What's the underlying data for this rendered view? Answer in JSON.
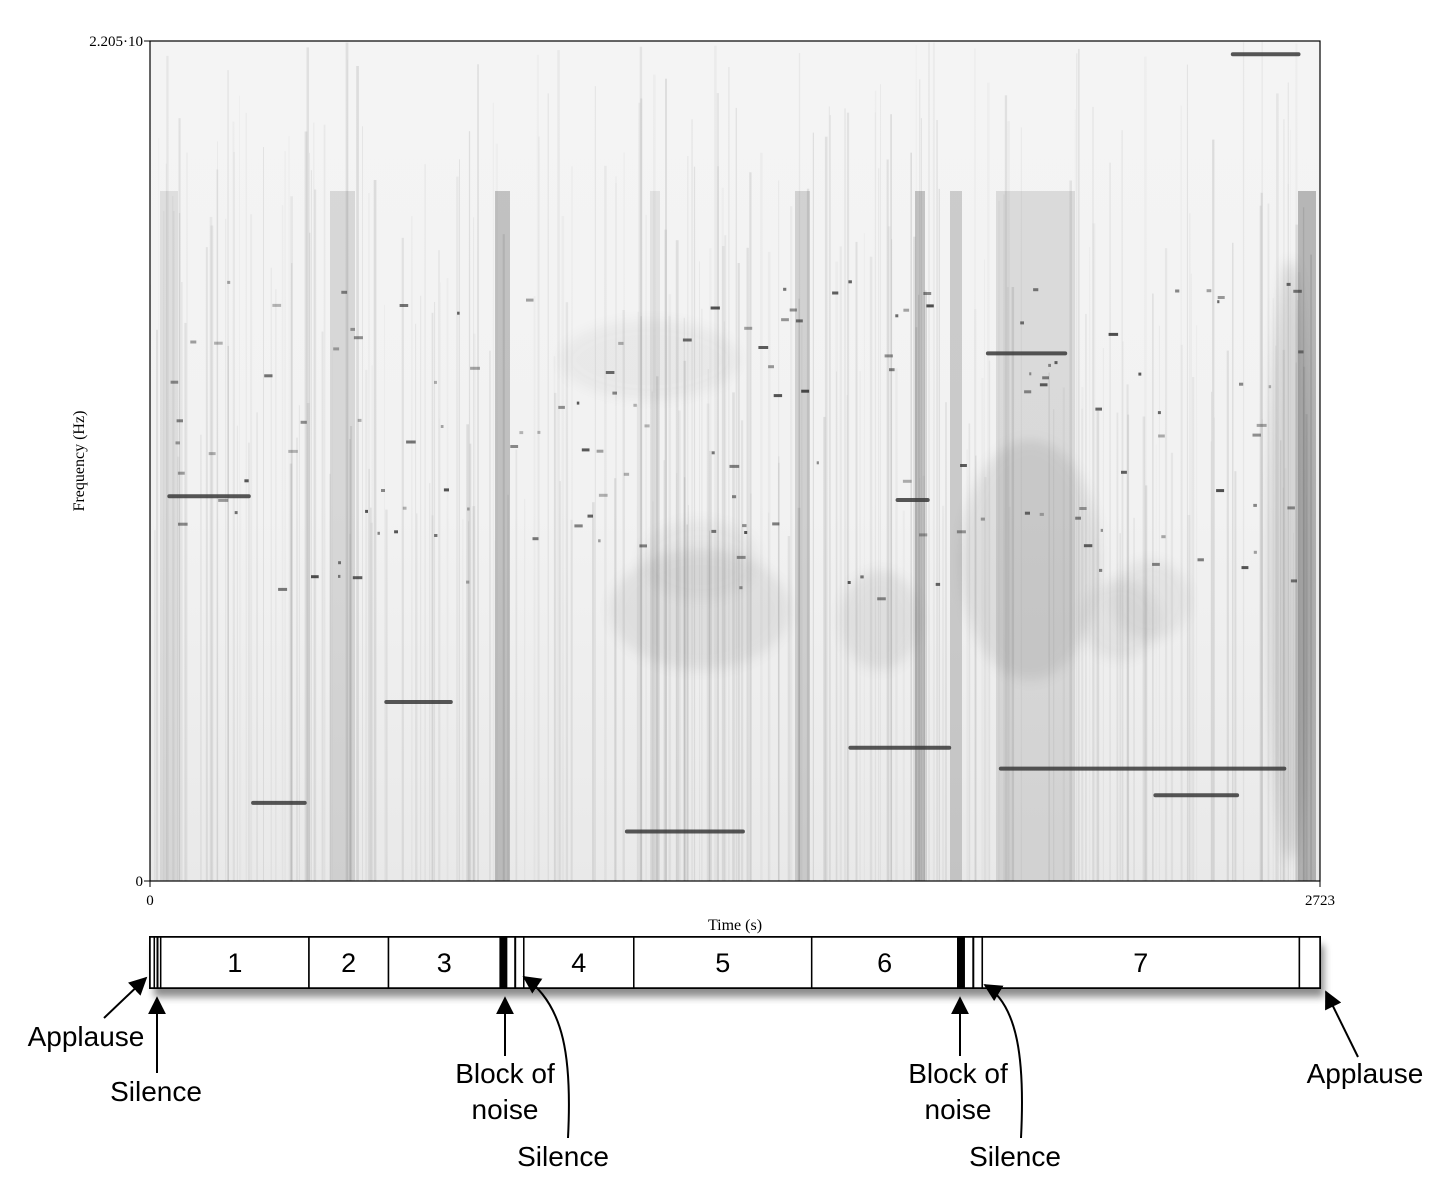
{
  "chart_data": {
    "type": "heatmap",
    "subtype": "spectrogram",
    "colormap": "grayscale (darker = higher intensity)",
    "xlabel": "Time (s)",
    "ylabel": "Frequency (Hz)",
    "x_ticks": [
      "0",
      "2723"
    ],
    "y_ticks": [
      "0",
      "2.205·10"
    ],
    "xlim": [
      0,
      2723
    ],
    "ylim": [
      0,
      22050
    ],
    "grid": false,
    "visible_tonal_lines": [
      {
        "t_start": 45,
        "t_end": 230,
        "freq": 10100
      },
      {
        "t_start": 240,
        "t_end": 360,
        "freq": 2050
      },
      {
        "t_start": 550,
        "t_end": 700,
        "freq": 4700
      },
      {
        "t_start": 1110,
        "t_end": 1380,
        "freq": 1300
      },
      {
        "t_start": 1630,
        "t_end": 1860,
        "freq": 3500
      },
      {
        "t_start": 1740,
        "t_end": 1810,
        "freq": 10000
      },
      {
        "t_start": 1950,
        "t_end": 2130,
        "freq": 13850
      },
      {
        "t_start": 1980,
        "t_end": 2640,
        "freq": 2950
      },
      {
        "t_start": 2340,
        "t_end": 2530,
        "freq": 2250
      },
      {
        "t_start": 2520,
        "t_end": 2673,
        "freq": 21700
      }
    ]
  },
  "timeline": {
    "segments": [
      {
        "kind": "applause",
        "label": "",
        "t_start": 0,
        "t_end": 10
      },
      {
        "kind": "silence",
        "label": "",
        "t_start": 10,
        "t_end": 25
      },
      {
        "kind": "part",
        "label": "1",
        "t_start": 25,
        "t_end": 370
      },
      {
        "kind": "part",
        "label": "2",
        "t_start": 370,
        "t_end": 555
      },
      {
        "kind": "part",
        "label": "3",
        "t_start": 555,
        "t_end": 815
      },
      {
        "kind": "noise",
        "label": "",
        "t_start": 815,
        "t_end": 830
      },
      {
        "kind": "silence",
        "label": "",
        "t_start": 830,
        "t_end": 870
      },
      {
        "kind": "part",
        "label": "4",
        "t_start": 870,
        "t_end": 1126
      },
      {
        "kind": "part",
        "label": "5",
        "t_start": 1126,
        "t_end": 1540
      },
      {
        "kind": "part",
        "label": "6",
        "t_start": 1540,
        "t_end": 1880
      },
      {
        "kind": "noise",
        "label": "",
        "t_start": 1880,
        "t_end": 1895
      },
      {
        "kind": "silence",
        "label": "",
        "t_start": 1895,
        "t_end": 1937
      },
      {
        "kind": "part",
        "label": "7",
        "t_start": 1937,
        "t_end": 2675
      },
      {
        "kind": "applause",
        "label": "",
        "t_start": 2675,
        "t_end": 2723
      }
    ],
    "annotations": [
      {
        "id": "applause-start",
        "lines": [
          "Applause"
        ]
      },
      {
        "id": "silence-1",
        "lines": [
          "Silence"
        ]
      },
      {
        "id": "noise-1",
        "lines": [
          "Block of",
          "noise"
        ]
      },
      {
        "id": "silence-2",
        "lines": [
          "Silence"
        ]
      },
      {
        "id": "noise-2",
        "lines": [
          "Block of",
          "noise"
        ]
      },
      {
        "id": "silence-3",
        "lines": [
          "Silence"
        ]
      },
      {
        "id": "applause-end",
        "lines": [
          "Applause"
        ]
      }
    ]
  }
}
